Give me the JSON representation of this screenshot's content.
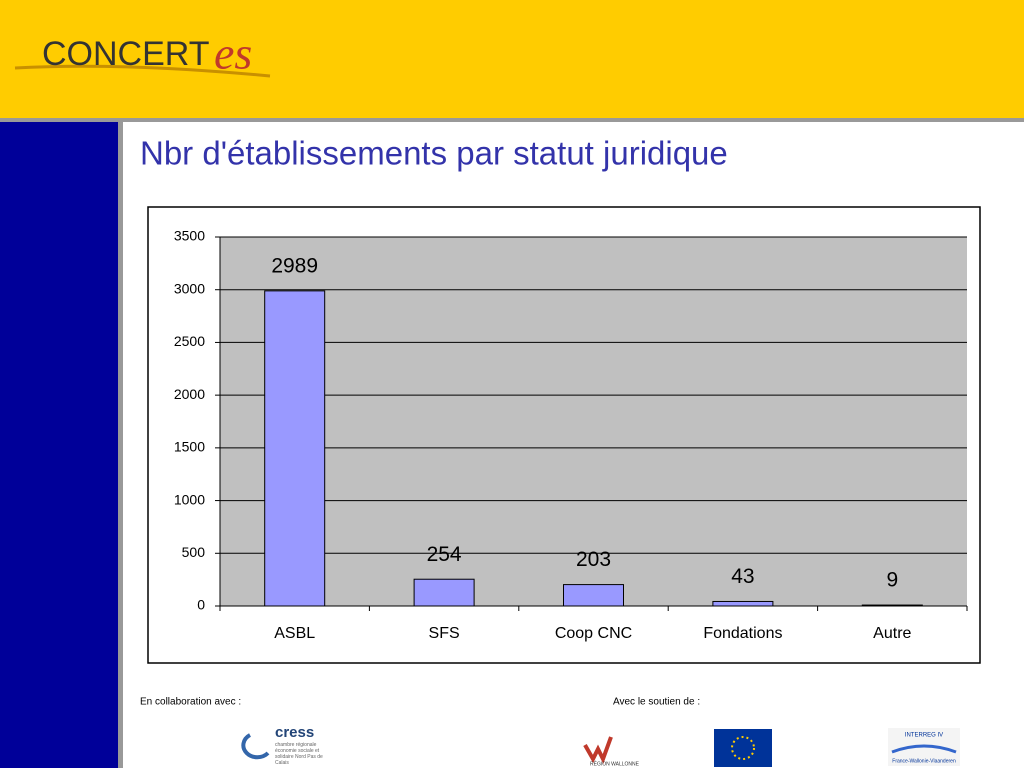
{
  "header": {
    "logo_main": "CONCERT",
    "logo_script": "es"
  },
  "chart_data": {
    "type": "bar",
    "title": "Nbr d'établissements par statut juridique",
    "categories": [
      "ASBL",
      "SFS",
      "Coop CNC",
      "Fondations",
      "Autre"
    ],
    "values": [
      2989,
      254,
      203,
      43,
      9
    ],
    "color": "#9999ff",
    "ylim": [
      0,
      3500
    ],
    "yticks": [
      0,
      500,
      1000,
      1500,
      2000,
      2500,
      3000,
      3500
    ],
    "grid": true
  },
  "footer": {
    "left_label": "En collaboration avec :",
    "right_label": "Avec le soutien de :",
    "cress": "cress",
    "cress_sub": "chambre régionale économie sociale et solidaire Nord Pas de Calais",
    "wallonie": "RÉGION WALLONNE",
    "interreg": "INTERREG IV",
    "interreg_sub": "France-Wallonie-Vlaanderen"
  }
}
